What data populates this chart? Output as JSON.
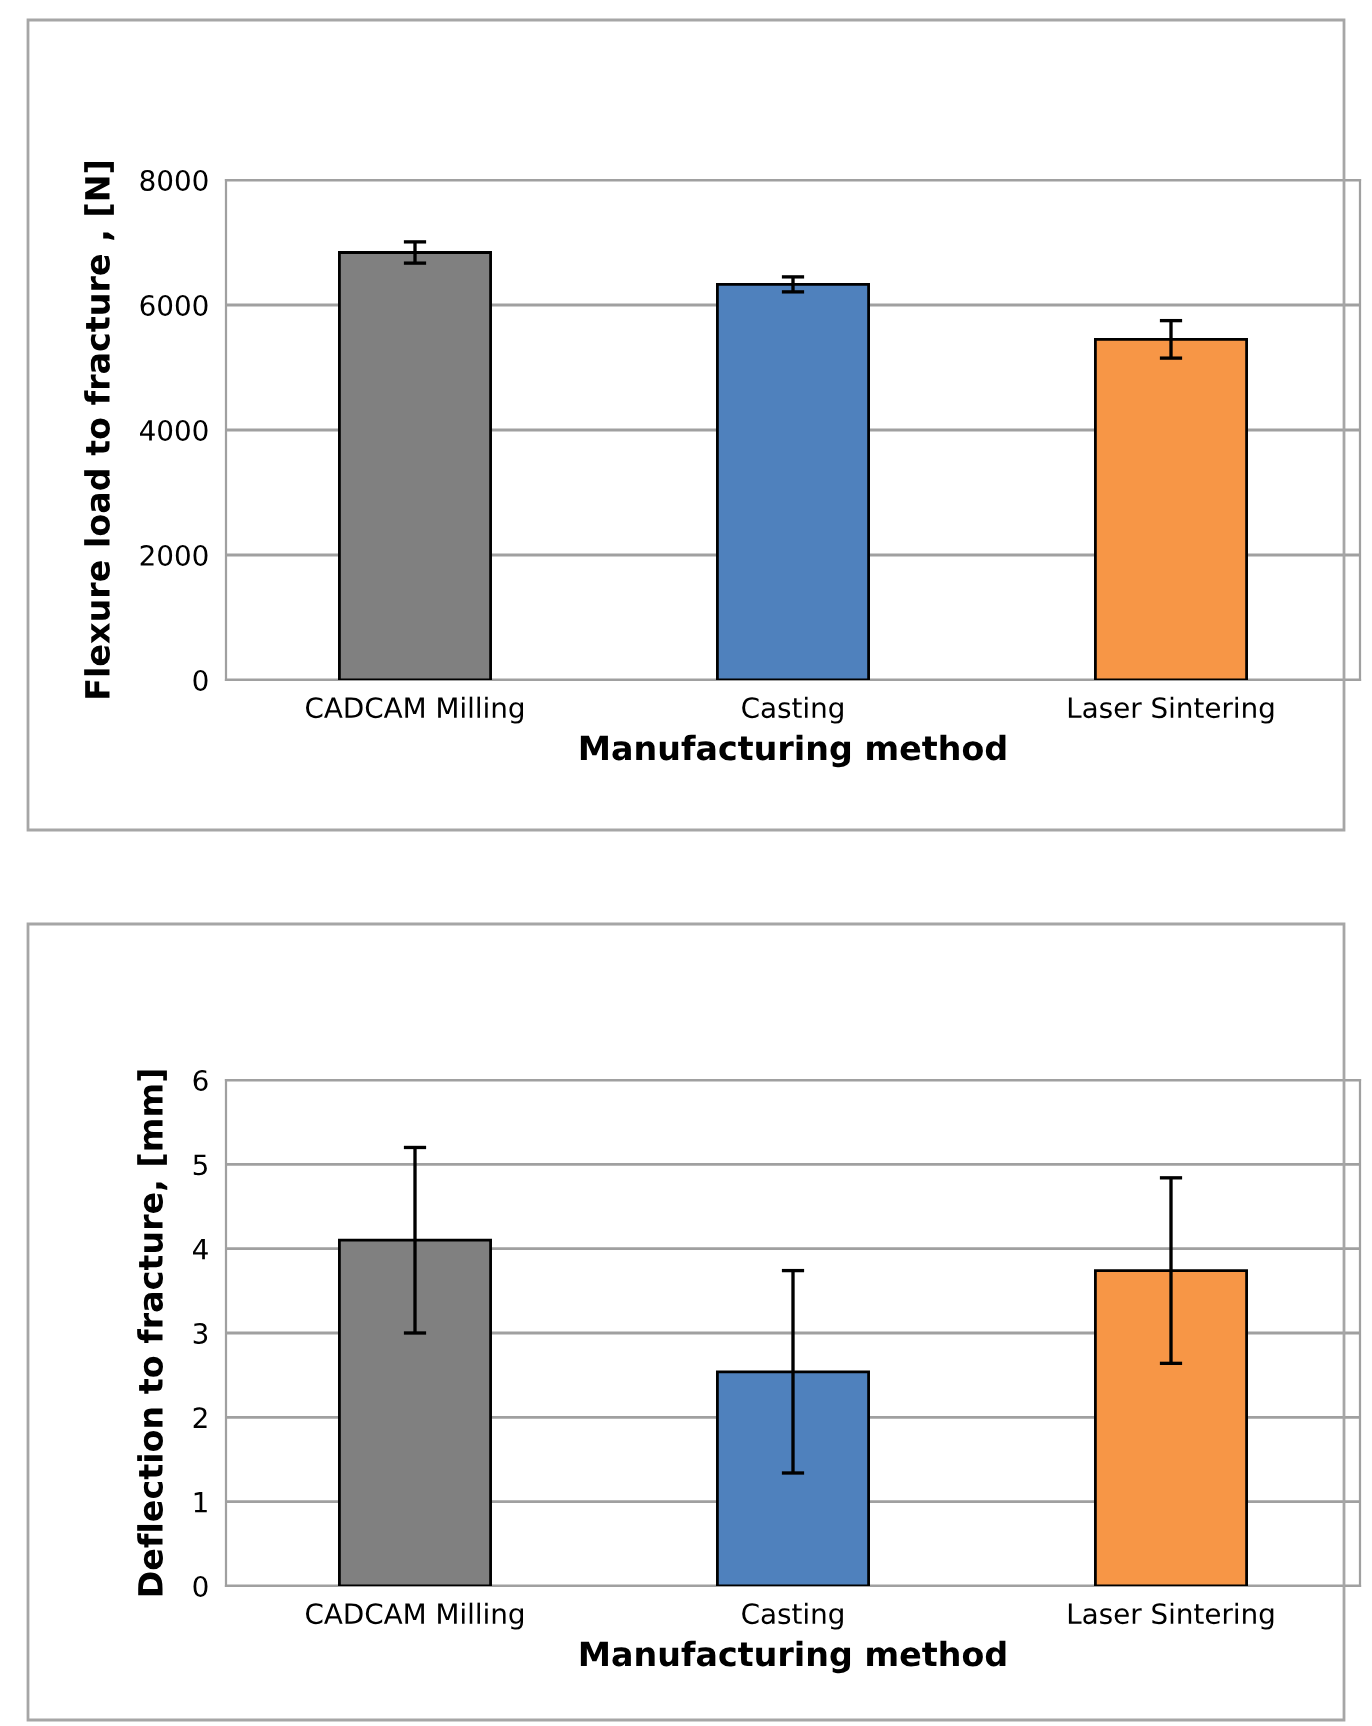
{
  "chart_data": [
    {
      "type": "bar",
      "ylabel": "Flexure load to fracture , [N]",
      "xlabel": "Manufacturing method",
      "categories": [
        "CADCAM Milling",
        "Casting",
        "Laser Sintering"
      ],
      "values": [
        6840,
        6330,
        5450
      ],
      "errors": [
        170,
        120,
        300
      ],
      "colors": [
        "#808080",
        "#4f81bd",
        "#f79646"
      ],
      "ylim": [
        0,
        8000
      ],
      "yticks": [
        0,
        2000,
        4000,
        6000,
        8000
      ],
      "grid": "y"
    },
    {
      "type": "bar",
      "ylabel": "Deflection to fracture, [mm]",
      "xlabel": "Manufacturing method",
      "categories": [
        "CADCAM Milling",
        "Casting",
        "Laser Sintering"
      ],
      "values": [
        4.1,
        2.54,
        3.74
      ],
      "errors": [
        1.1,
        1.2,
        1.1
      ],
      "colors": [
        "#808080",
        "#4f81bd",
        "#f79646"
      ],
      "ylim": [
        0,
        6
      ],
      "yticks": [
        0,
        1,
        2,
        3,
        4,
        5,
        6
      ],
      "grid": "y"
    }
  ]
}
